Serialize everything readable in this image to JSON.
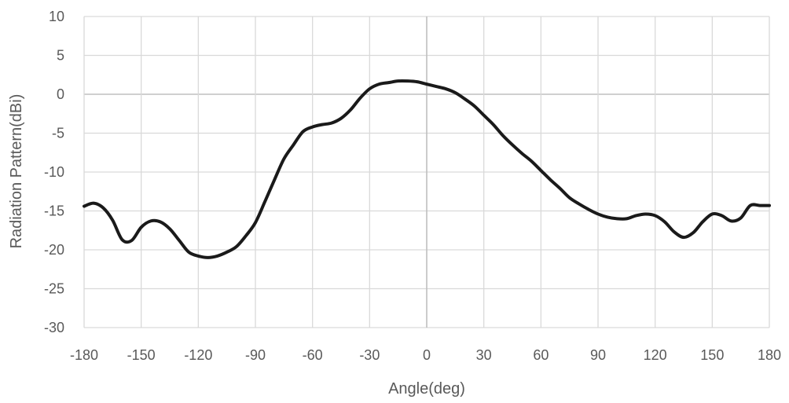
{
  "chart_data": {
    "type": "line",
    "xlabel": "Angle(deg)",
    "ylabel": "Radiation Pattern(dBi)",
    "xlim": [
      -180,
      180
    ],
    "ylim": [
      -30,
      10
    ],
    "xticks": [
      -180,
      -150,
      -120,
      -90,
      -60,
      -30,
      0,
      30,
      60,
      90,
      120,
      150,
      180
    ],
    "yticks": [
      10,
      5,
      0,
      -5,
      -10,
      -15,
      -20,
      -25,
      -30
    ],
    "grid": true,
    "legend": "none",
    "line_color": "#1a1a1a",
    "series": [
      {
        "x": [
          -180,
          -175,
          -170,
          -165,
          -160,
          -155,
          -150,
          -145,
          -140,
          -135,
          -130,
          -125,
          -120,
          -115,
          -110,
          -105,
          -100,
          -95,
          -90,
          -85,
          -80,
          -75,
          -70,
          -65,
          -60,
          -55,
          -50,
          -45,
          -40,
          -35,
          -30,
          -25,
          -20,
          -15,
          -10,
          -5,
          0,
          5,
          10,
          15,
          20,
          25,
          30,
          35,
          40,
          45,
          50,
          55,
          60,
          65,
          70,
          75,
          80,
          85,
          90,
          95,
          100,
          105,
          110,
          115,
          120,
          125,
          130,
          135,
          140,
          145,
          150,
          155,
          160,
          165,
          170,
          175,
          180
        ],
        "y": [
          -14.4,
          -14.0,
          -14.6,
          -16.2,
          -18.7,
          -18.8,
          -17.1,
          -16.3,
          -16.4,
          -17.3,
          -18.8,
          -20.3,
          -20.8,
          -21.0,
          -20.8,
          -20.3,
          -19.6,
          -18.2,
          -16.5,
          -13.8,
          -11.0,
          -8.3,
          -6.5,
          -4.8,
          -4.2,
          -3.9,
          -3.7,
          -3.1,
          -2.0,
          -0.5,
          0.7,
          1.3,
          1.5,
          1.7,
          1.7,
          1.6,
          1.3,
          1.0,
          0.7,
          0.2,
          -0.6,
          -1.5,
          -2.7,
          -3.9,
          -5.3,
          -6.5,
          -7.6,
          -8.6,
          -9.8,
          -11.0,
          -12.1,
          -13.3,
          -14.1,
          -14.8,
          -15.4,
          -15.8,
          -16.0,
          -16.0,
          -15.6,
          -15.4,
          -15.6,
          -16.4,
          -17.7,
          -18.4,
          -17.8,
          -16.4,
          -15.4,
          -15.6,
          -16.3,
          -15.9,
          -14.3,
          -14.3,
          -14.3
        ]
      }
    ]
  }
}
